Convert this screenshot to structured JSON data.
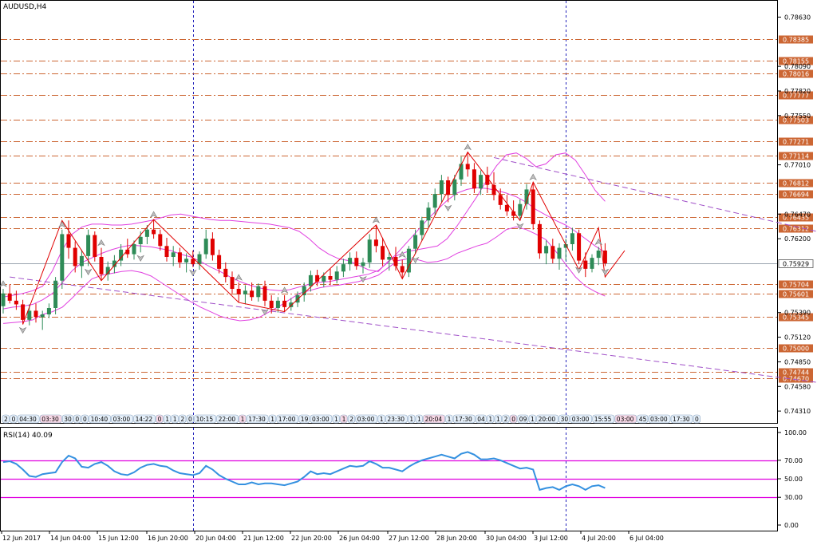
{
  "chart_data": {
    "type": "candlestick",
    "symbol": "AUDUSD,H4",
    "price_axis": {
      "min": 0.7418,
      "max": 0.788,
      "ticks": [
        "0.78630",
        "0.78090",
        "0.77820",
        "0.77550",
        "0.77010",
        "0.76470",
        "0.76200",
        "0.75390",
        "0.75120",
        "0.74850",
        "0.74580",
        "0.74310"
      ]
    },
    "current_price": "0.75929",
    "horizontal_levels": [
      "0.78385",
      "0.78155",
      "0.78016",
      "0.77777",
      "0.77503",
      "0.77271",
      "0.77114",
      "0.76812",
      "0.76694",
      "0.76435",
      "0.76312",
      "0.75704",
      "0.75601",
      "0.75345",
      "0.75000",
      "0.74744",
      "0.74670"
    ],
    "time_axis": [
      "12 Jun 2017",
      "14 Jun 04:00",
      "15 Jun 12:00",
      "16 Jun 20:00",
      "20 Jun 04:00",
      "21 Jun 12:00",
      "22 Jun 20:00",
      "26 Jun 04:00",
      "27 Jun 12:00",
      "28 Jun 20:00",
      "30 Jun 04:00",
      "3 Jul 12:00",
      "4 Jul 20:00",
      "6 Jul 04:00"
    ],
    "time_tags": [
      "2",
      "0",
      "04:30",
      "03:30",
      "30",
      "0",
      "0",
      "10:40",
      "03:00",
      "14:22",
      "0",
      "1",
      "1",
      "2",
      "0",
      "10:15",
      "22:00",
      "1",
      "17:30",
      "1",
      "17:00",
      "19",
      "03:00",
      "1",
      "1",
      "2",
      "03:00",
      "1",
      "23:30",
      "1",
      "1",
      "20:04",
      "1",
      "17:30",
      "04",
      "1",
      "1",
      "2",
      "0",
      "09",
      "1",
      "20:00",
      "30",
      "03:00",
      "15:55",
      "03:00",
      "45",
      "03:00",
      "17:30",
      "0"
    ],
    "candles": [
      [
        0.7546,
        0.7565,
        0.7538,
        0.756
      ],
      [
        0.756,
        0.757,
        0.7549,
        0.7552
      ],
      [
        0.7552,
        0.7563,
        0.7542,
        0.7548
      ],
      [
        0.7548,
        0.7553,
        0.7526,
        0.7531
      ],
      [
        0.7531,
        0.7548,
        0.7525,
        0.7541
      ],
      [
        0.7541,
        0.7549,
        0.7528,
        0.7534
      ],
      [
        0.7534,
        0.7541,
        0.752,
        0.7537
      ],
      [
        0.7537,
        0.7549,
        0.7533,
        0.7544
      ],
      [
        0.7544,
        0.7578,
        0.7537,
        0.7574
      ],
      [
        0.7574,
        0.763,
        0.7565,
        0.7625
      ],
      [
        0.7625,
        0.764,
        0.7598,
        0.761
      ],
      [
        0.761,
        0.7617,
        0.7583,
        0.759
      ],
      [
        0.759,
        0.7608,
        0.7577,
        0.7601
      ],
      [
        0.7601,
        0.763,
        0.759,
        0.7624
      ],
      [
        0.7624,
        0.7628,
        0.7595,
        0.76
      ],
      [
        0.76,
        0.761,
        0.7575,
        0.7581
      ],
      [
        0.7581,
        0.7595,
        0.7574,
        0.7589
      ],
      [
        0.7589,
        0.7602,
        0.7582,
        0.7596
      ],
      [
        0.7596,
        0.7614,
        0.759,
        0.7608
      ],
      [
        0.7608,
        0.762,
        0.7599,
        0.7603
      ],
      [
        0.7603,
        0.7618,
        0.7597,
        0.7614
      ],
      [
        0.7614,
        0.7628,
        0.7605,
        0.7622
      ],
      [
        0.7622,
        0.7635,
        0.7614,
        0.763
      ],
      [
        0.763,
        0.7641,
        0.762,
        0.7625
      ],
      [
        0.7625,
        0.763,
        0.7607,
        0.7612
      ],
      [
        0.7612,
        0.7621,
        0.7595,
        0.76
      ],
      [
        0.76,
        0.7612,
        0.759,
        0.7605
      ],
      [
        0.7605,
        0.761,
        0.7588,
        0.7594
      ],
      [
        0.7594,
        0.7604,
        0.7583,
        0.7598
      ],
      [
        0.7598,
        0.7607,
        0.7589,
        0.7592
      ],
      [
        0.7592,
        0.7606,
        0.7586,
        0.7603
      ],
      [
        0.7603,
        0.763,
        0.7598,
        0.762
      ],
      [
        0.762,
        0.7627,
        0.7596,
        0.7602
      ],
      [
        0.7602,
        0.7608,
        0.7582,
        0.7587
      ],
      [
        0.7587,
        0.7594,
        0.7572,
        0.7578
      ],
      [
        0.7578,
        0.7584,
        0.756,
        0.7565
      ],
      [
        0.7565,
        0.7572,
        0.755,
        0.7559
      ],
      [
        0.7559,
        0.7569,
        0.7548,
        0.7563
      ],
      [
        0.7563,
        0.7572,
        0.7552,
        0.7556
      ],
      [
        0.7556,
        0.7571,
        0.7551,
        0.7568
      ],
      [
        0.7568,
        0.7574,
        0.7546,
        0.7552
      ],
      [
        0.7552,
        0.7558,
        0.7538,
        0.7544
      ],
      [
        0.7544,
        0.7556,
        0.7539,
        0.7552
      ],
      [
        0.7552,
        0.7558,
        0.754,
        0.7545
      ],
      [
        0.7545,
        0.7555,
        0.7541,
        0.755
      ],
      [
        0.755,
        0.7562,
        0.7545,
        0.7558
      ],
      [
        0.7558,
        0.7572,
        0.7551,
        0.7568
      ],
      [
        0.7568,
        0.7585,
        0.7562,
        0.758
      ],
      [
        0.758,
        0.7586,
        0.7568,
        0.7573
      ],
      [
        0.7573,
        0.7583,
        0.7567,
        0.7579
      ],
      [
        0.7579,
        0.7587,
        0.7569,
        0.7575
      ],
      [
        0.7575,
        0.759,
        0.7571,
        0.7584
      ],
      [
        0.7584,
        0.7598,
        0.7578,
        0.7592
      ],
      [
        0.7592,
        0.7605,
        0.7585,
        0.7599
      ],
      [
        0.7599,
        0.7606,
        0.7586,
        0.759
      ],
      [
        0.759,
        0.7599,
        0.7582,
        0.7594
      ],
      [
        0.7594,
        0.7625,
        0.7588,
        0.7619
      ],
      [
        0.7619,
        0.7635,
        0.7605,
        0.7612
      ],
      [
        0.7612,
        0.7621,
        0.759,
        0.7597
      ],
      [
        0.7597,
        0.7605,
        0.7585,
        0.76
      ],
      [
        0.76,
        0.7611,
        0.7585,
        0.759
      ],
      [
        0.759,
        0.7597,
        0.7576,
        0.7583
      ],
      [
        0.7583,
        0.7612,
        0.7578,
        0.7609
      ],
      [
        0.7609,
        0.763,
        0.7603,
        0.7624
      ],
      [
        0.7624,
        0.7644,
        0.7618,
        0.764
      ],
      [
        0.764,
        0.766,
        0.7632,
        0.7654
      ],
      [
        0.7654,
        0.7675,
        0.7646,
        0.7669
      ],
      [
        0.7669,
        0.769,
        0.766,
        0.7684
      ],
      [
        0.7684,
        0.7688,
        0.766,
        0.7668
      ],
      [
        0.7668,
        0.769,
        0.7662,
        0.7685
      ],
      [
        0.7685,
        0.771,
        0.7678,
        0.7702
      ],
      [
        0.7702,
        0.7715,
        0.7688,
        0.7696
      ],
      [
        0.7696,
        0.7703,
        0.767,
        0.7675
      ],
      [
        0.7675,
        0.7695,
        0.7668,
        0.769
      ],
      [
        0.769,
        0.7699,
        0.767,
        0.7679
      ],
      [
        0.7679,
        0.7693,
        0.7662,
        0.7668
      ],
      [
        0.7668,
        0.7675,
        0.7652,
        0.7657
      ],
      [
        0.7657,
        0.7668,
        0.7645,
        0.765
      ],
      [
        0.765,
        0.7662,
        0.764,
        0.7645
      ],
      [
        0.7645,
        0.7663,
        0.764,
        0.7658
      ],
      [
        0.7658,
        0.768,
        0.7652,
        0.7674
      ],
      [
        0.7674,
        0.7682,
        0.763,
        0.7636
      ],
      [
        0.7636,
        0.764,
        0.7598,
        0.7604
      ],
      [
        0.7604,
        0.7618,
        0.7592,
        0.7612
      ],
      [
        0.7612,
        0.762,
        0.7593,
        0.7598
      ],
      [
        0.7598,
        0.7615,
        0.7586,
        0.761
      ],
      [
        0.761,
        0.762,
        0.7596,
        0.7614
      ],
      [
        0.7614,
        0.7632,
        0.7607,
        0.7626
      ],
      [
        0.7626,
        0.763,
        0.7592,
        0.7596
      ],
      [
        0.7596,
        0.7605,
        0.7578,
        0.7587
      ],
      [
        0.7587,
        0.7603,
        0.7583,
        0.7599
      ],
      [
        0.7599,
        0.7611,
        0.7591,
        0.7607
      ],
      [
        0.7607,
        0.7615,
        0.759,
        0.7593
      ]
    ],
    "bollinger_bands": {
      "upper": [
        0.7556,
        0.7558,
        0.756,
        0.7563,
        0.7568,
        0.7585,
        0.7608,
        0.7625,
        0.7633,
        0.7636,
        0.7636,
        0.7635,
        0.7635,
        0.7636,
        0.7638,
        0.764,
        0.7643,
        0.7646,
        0.7647,
        0.7645,
        0.7643,
        0.7641,
        0.764,
        0.764,
        0.7639,
        0.7638,
        0.7637,
        0.7636,
        0.7634,
        0.7632,
        0.7628,
        0.762,
        0.761,
        0.7603,
        0.7598,
        0.7596,
        0.7591,
        0.7586,
        0.7584,
        0.7595,
        0.7602,
        0.7606,
        0.7608,
        0.761,
        0.7612,
        0.762,
        0.7634,
        0.765,
        0.7666,
        0.7684,
        0.77,
        0.7712,
        0.7714,
        0.7708,
        0.7699,
        0.7702,
        0.7712,
        0.7714,
        0.7706,
        0.769,
        0.7673,
        0.7661
      ],
      "middle": [
        0.7543,
        0.7545,
        0.7546,
        0.7548,
        0.7553,
        0.756,
        0.7572,
        0.7585,
        0.7594,
        0.7599,
        0.7604,
        0.7608,
        0.7611,
        0.7613,
        0.7612,
        0.7611,
        0.7609,
        0.7607,
        0.7603,
        0.76,
        0.7595,
        0.7589,
        0.7584,
        0.7578,
        0.7573,
        0.7569,
        0.7566,
        0.7564,
        0.7563,
        0.7564,
        0.7567,
        0.757,
        0.7572,
        0.7573,
        0.7575,
        0.7577,
        0.7579,
        0.7581,
        0.7585,
        0.7594,
        0.7605,
        0.7617,
        0.7629,
        0.7641,
        0.7652,
        0.7662,
        0.767,
        0.7674,
        0.7676,
        0.7675,
        0.7673,
        0.767,
        0.7666,
        0.766,
        0.7652,
        0.7646,
        0.764,
        0.7635,
        0.7628,
        0.762,
        0.7612,
        0.7605
      ],
      "lower": [
        0.7527,
        0.7528,
        0.7529,
        0.7531,
        0.7537,
        0.754,
        0.7545,
        0.7555,
        0.7566,
        0.7576,
        0.758,
        0.7582,
        0.7584,
        0.7585,
        0.7583,
        0.7579,
        0.7572,
        0.7565,
        0.7558,
        0.7551,
        0.7545,
        0.754,
        0.7535,
        0.7532,
        0.753,
        0.7531,
        0.7534,
        0.754,
        0.7546,
        0.7553,
        0.756,
        0.7563,
        0.7566,
        0.7568,
        0.7569,
        0.7571,
        0.7573,
        0.7576,
        0.758,
        0.7588,
        0.7596,
        0.7598,
        0.7597,
        0.7594,
        0.7595,
        0.7598,
        0.7604,
        0.7608,
        0.7612,
        0.7615,
        0.7622,
        0.763,
        0.7633,
        0.763,
        0.7625,
        0.7619,
        0.7606,
        0.7592,
        0.7578,
        0.7568,
        0.7562,
        0.7557
      ]
    },
    "zigzag": [
      [
        3,
        0.7526
      ],
      [
        9,
        0.764
      ],
      [
        15,
        0.7574
      ],
      [
        23,
        0.7641
      ],
      [
        36,
        0.755
      ],
      [
        43,
        0.754
      ],
      [
        57,
        0.7635
      ],
      [
        61,
        0.7576
      ],
      [
        71,
        0.7715
      ],
      [
        79,
        0.764
      ],
      [
        81,
        0.7682
      ],
      [
        88,
        0.7586
      ],
      [
        91,
        0.7632
      ],
      [
        92,
        0.7578
      ],
      [
        95,
        0.7607
      ]
    ],
    "arrow_marks": {
      "up": [
        0,
        9,
        15,
        23,
        36,
        43,
        57,
        61,
        71,
        81,
        91,
        95
      ],
      "down": [
        3,
        13,
        21,
        29,
        40,
        55,
        63,
        68,
        79,
        88,
        92
      ]
    },
    "trendlines": [
      {
        "from": [
          1,
          0.7578
        ],
        "to": [
          142,
          0.7446
        ]
      },
      {
        "from": [
          75,
          0.7709
        ],
        "to": [
          142,
          0.7599
        ]
      }
    ],
    "vertical_separators": [
      29,
      86,
      143,
      208
    ],
    "rsi": {
      "label": "RSI(14) 40.09",
      "ticks": [
        "100.00",
        "70.00",
        "50.00",
        "30.00",
        "0.00"
      ],
      "levels": [
        70,
        50,
        30
      ],
      "values": [
        68,
        69,
        66,
        60,
        53,
        52,
        55,
        56,
        57,
        68,
        75,
        72,
        63,
        62,
        66,
        68,
        64,
        58,
        55,
        54,
        57,
        62,
        65,
        66,
        64,
        63,
        59,
        56,
        55,
        54,
        56,
        64,
        60,
        54,
        50,
        47,
        44,
        44,
        46,
        44,
        45,
        45,
        44,
        43,
        45,
        47,
        52,
        58,
        55,
        56,
        55,
        58,
        61,
        64,
        63,
        64,
        69,
        66,
        62,
        62,
        60,
        58,
        63,
        67,
        70,
        72,
        74,
        76,
        74,
        72,
        77,
        79,
        76,
        71,
        71,
        72,
        70,
        67,
        64,
        61,
        62,
        60,
        38,
        40,
        41,
        38,
        42,
        44,
        42,
        38,
        42,
        43,
        40
      ]
    },
    "colors": {
      "bull": "#2e8b57",
      "bear": "#e00000",
      "band": "#e040e0",
      "level": "#cc6633",
      "zigzag": "#e00000",
      "trend": "#a050c8",
      "rsi_line": "#3390e0",
      "rsi_level": "#e000e0",
      "grid_v": "#2222bb"
    }
  }
}
